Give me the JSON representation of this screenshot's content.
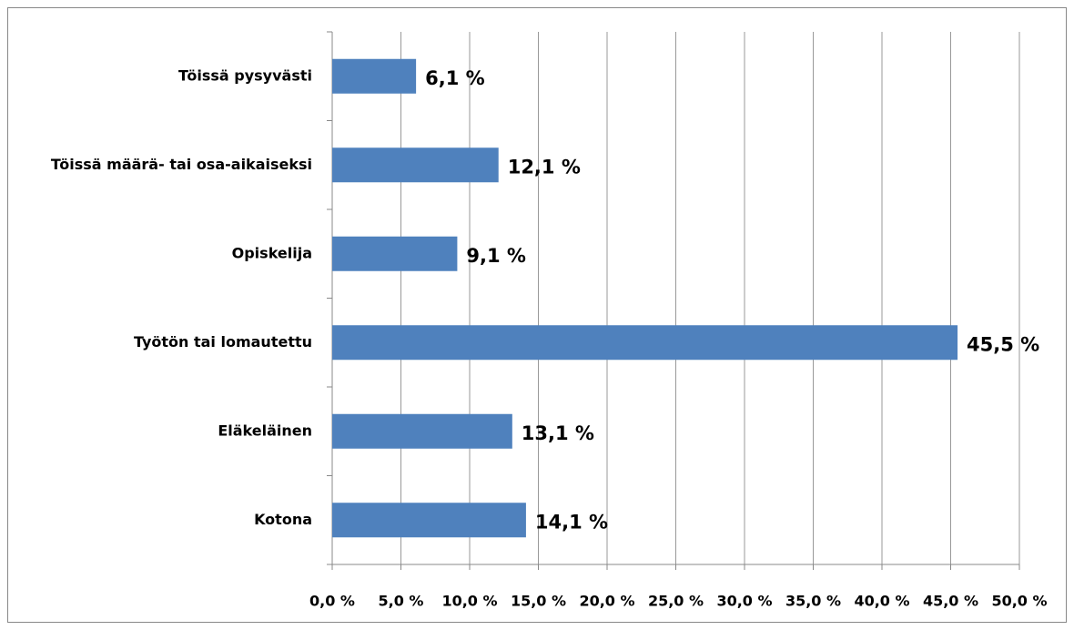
{
  "chart_data": {
    "type": "bar",
    "orientation": "horizontal",
    "categories": [
      "Töissä pysyvästi",
      "Töissä määrä- tai osa-aikaiseksi",
      "Opiskelija",
      "Työtön tai lomautettu",
      "Eläkeläinen",
      "Kotona"
    ],
    "values": [
      6.1,
      12.1,
      9.1,
      45.5,
      13.1,
      14.1
    ],
    "value_labels": [
      "6,1 %",
      "12,1 %",
      "9,1 %",
      "45,5 %",
      "13,1 %",
      "14,1 %"
    ],
    "color": "#4f81bd",
    "xlim": [
      0,
      50
    ],
    "xticks": [
      {
        "value": 0,
        "label": "0,0 %"
      },
      {
        "value": 5,
        "label": "5,0 %"
      },
      {
        "value": 10,
        "label": "10,0 %"
      },
      {
        "value": 15,
        "label": "15,0 %"
      },
      {
        "value": 20,
        "label": "20,0 %"
      },
      {
        "value": 25,
        "label": "25,0 %"
      },
      {
        "value": 30,
        "label": "30,0 %"
      },
      {
        "value": 35,
        "label": "35,0 %"
      },
      {
        "value": 40,
        "label": "40,0 %"
      },
      {
        "value": 45,
        "label": "45,0 %"
      },
      {
        "value": 50,
        "label": "50,0 %"
      }
    ],
    "grid": true
  }
}
